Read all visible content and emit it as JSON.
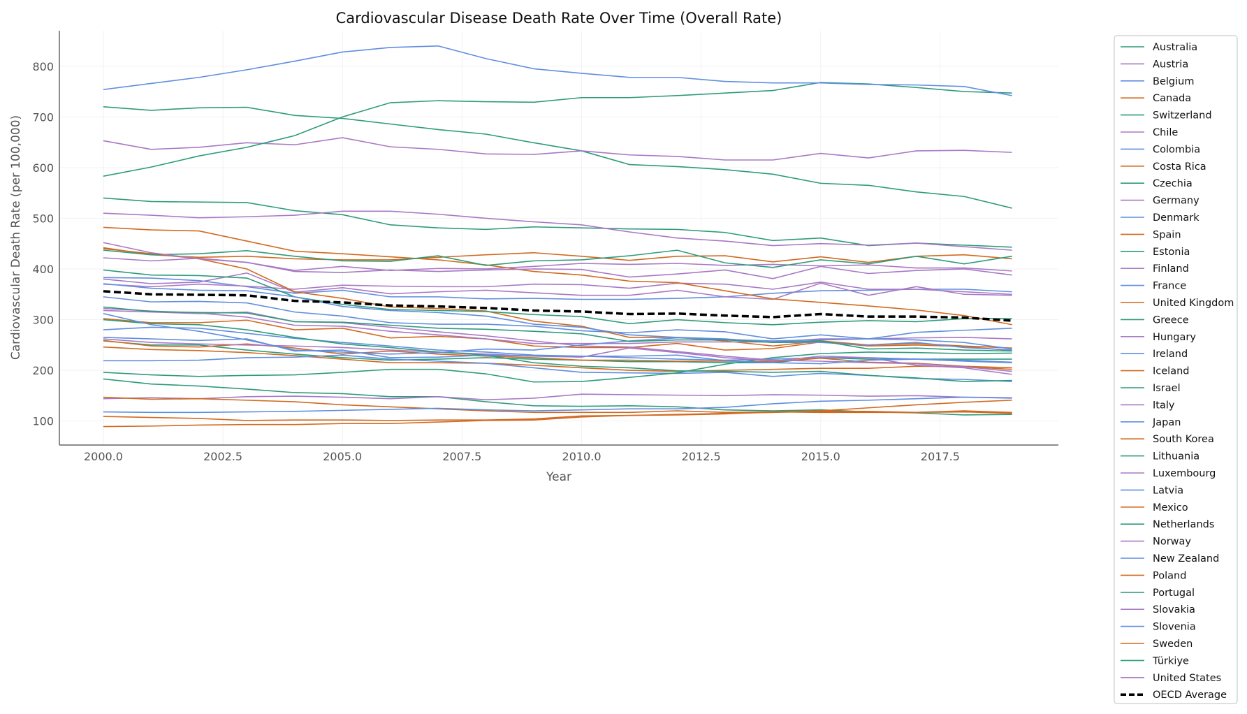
{
  "chart_data": {
    "type": "line",
    "title": "Cardiovascular Disease Death Rate Over Time (Overall Rate)",
    "xlabel": "Year",
    "ylabel": "Cardiovascular Death Rate (per 100,000)",
    "xlim": [
      1999.08,
      2019.97
    ],
    "ylim": [
      52.6,
      870
    ],
    "x_ticks": [
      2000,
      2002.5,
      2005,
      2007.5,
      2010,
      2012.5,
      2015,
      2017.5
    ],
    "x_tick_labels": [
      "2000.0",
      "2002.5",
      "2005.0",
      "2007.5",
      "2010.0",
      "2012.5",
      "2015.0",
      "2017.5"
    ],
    "y_ticks": [
      100,
      200,
      300,
      400,
      500,
      600,
      700,
      800
    ],
    "y_tick_labels": [
      "100",
      "200",
      "300",
      "400",
      "500",
      "600",
      "700",
      "800"
    ],
    "grid": true,
    "legend": "right, outside",
    "colors": {
      "green": "#2e9b7b",
      "purple": "#a878c4",
      "blue": "#5f8ee0",
      "orange": "#d2691f",
      "average": "#000000"
    },
    "x": [
      2000,
      2001,
      2002,
      2003,
      2004,
      2005,
      2006,
      2007,
      2008,
      2009,
      2010,
      2011,
      2012,
      2013,
      2014,
      2015,
      2016,
      2017,
      2018,
      2019
    ],
    "series": [
      {
        "name": "Australia",
        "color": "green",
        "values": [
          258,
          250,
          250,
          240,
          232,
          225,
          220,
          222,
          225,
          222,
          220,
          217,
          217,
          215,
          215,
          225,
          222,
          222,
          222,
          222
        ]
      },
      {
        "name": "Austria",
        "color": "purple",
        "values": [
          422,
          416,
          421,
          413,
          397,
          405,
          397,
          401,
          400,
          405,
          411,
          409,
          411,
          407,
          409,
          406,
          408,
          402,
          402,
          396
        ]
      },
      {
        "name": "Belgium",
        "color": "blue",
        "values": [
          383,
          382,
          377,
          365,
          352,
          358,
          345,
          345,
          341,
          342,
          340,
          340,
          342,
          345,
          352,
          357,
          358,
          360,
          360,
          355
        ]
      },
      {
        "name": "Canada",
        "color": "orange",
        "values": [
          302,
          294,
          294,
          299,
          280,
          283,
          264,
          267,
          262,
          248,
          245,
          245,
          253,
          240,
          243,
          256,
          248,
          250,
          247,
          239
        ]
      },
      {
        "name": "Switzerland",
        "color": "green",
        "values": [
          183,
          173,
          169,
          163,
          156,
          154,
          148,
          148,
          138,
          130,
          129,
          130,
          128,
          122,
          120,
          122,
          118,
          116,
          112,
          113
        ]
      },
      {
        "name": "Chile",
        "color": "purple",
        "values": [
          144,
          146,
          144,
          148,
          149,
          147,
          144,
          148,
          142,
          145,
          153,
          152,
          151,
          150,
          152,
          151,
          149,
          150,
          147,
          146
        ]
      },
      {
        "name": "Colombia",
        "color": "blue",
        "values": [
          280,
          285,
          283,
          273,
          263,
          255,
          248,
          240,
          236,
          230,
          228,
          225,
          222,
          220,
          222,
          225,
          225,
          222,
          218,
          215
        ]
      },
      {
        "name": "Costa Rica",
        "color": "orange",
        "values": [
          246,
          241,
          239,
          235,
          229,
          222,
          215,
          215,
          214,
          210,
          205,
          200,
          198,
          200,
          202,
          204,
          204,
          208,
          207,
          202
        ]
      },
      {
        "name": "Czechia",
        "color": "green",
        "values": [
          540,
          533,
          532,
          531,
          515,
          507,
          487,
          481,
          478,
          483,
          481,
          479,
          478,
          472,
          456,
          461,
          446,
          451,
          447,
          443
        ]
      },
      {
        "name": "Germany",
        "color": "purple",
        "values": [
          370,
          365,
          370,
          366,
          360,
          368,
          366,
          365,
          365,
          370,
          369,
          362,
          372,
          370,
          360,
          374,
          360,
          360,
          355,
          350
        ]
      },
      {
        "name": "Denmark",
        "color": "blue",
        "values": [
          345,
          335,
          336,
          333,
          315,
          307,
          294,
          291,
          291,
          287,
          278,
          274,
          280,
          276,
          262,
          270,
          262,
          275,
          279,
          283
        ]
      },
      {
        "name": "Spain",
        "color": "orange",
        "values": [
          259,
          248,
          246,
          252,
          244,
          232,
          238,
          232,
          228,
          225,
          220,
          220,
          218,
          218,
          217,
          224,
          216,
          214,
          208,
          205
        ]
      },
      {
        "name": "Estonia",
        "color": "green",
        "values": [
          720,
          713,
          718,
          719,
          703,
          697,
          686,
          675,
          666,
          649,
          633,
          606,
          602,
          596,
          587,
          569,
          565,
          552,
          543,
          520
        ]
      },
      {
        "name": "Finland",
        "color": "purple",
        "values": [
          380,
          371,
          374,
          392,
          354,
          363,
          351,
          355,
          358,
          353,
          348,
          348,
          358,
          345,
          340,
          372,
          348,
          365,
          350,
          348
        ]
      },
      {
        "name": "France",
        "color": "blue",
        "values": [
          219,
          219,
          220,
          225,
          226,
          230,
          222,
          218,
          214,
          205,
          196,
          195,
          194,
          196,
          188,
          194,
          190,
          184,
          182,
          178
        ]
      },
      {
        "name": "United Kingdom",
        "color": "orange",
        "values": [
          440,
          430,
          420,
          400,
          355,
          342,
          325,
          322,
          317,
          297,
          287,
          265,
          265,
          258,
          248,
          258,
          250,
          253,
          248,
          244
        ]
      },
      {
        "name": "Greece",
        "color": "green",
        "values": [
          398,
          388,
          387,
          382,
          345,
          330,
          320,
          318,
          316,
          310,
          306,
          292,
          300,
          294,
          290,
          295,
          298,
          296,
          302,
          302
        ]
      },
      {
        "name": "Hungary",
        "color": "purple",
        "values": [
          653,
          636,
          640,
          649,
          645,
          659,
          641,
          636,
          627,
          626,
          633,
          625,
          622,
          615,
          615,
          628,
          619,
          633,
          634,
          630
        ]
      },
      {
        "name": "Ireland",
        "color": "blue",
        "values": [
          371,
          362,
          358,
          357,
          345,
          326,
          318,
          314,
          307,
          291,
          285,
          270,
          265,
          262,
          255,
          255,
          250,
          255,
          245,
          240
        ]
      },
      {
        "name": "Iceland",
        "color": "orange",
        "values": [
          147,
          143,
          144,
          141,
          138,
          132,
          128,
          124,
          120,
          117,
          117,
          117,
          120,
          117,
          118,
          117,
          117,
          117,
          120,
          117
        ]
      },
      {
        "name": "Israel",
        "color": "green",
        "values": [
          196,
          191,
          188,
          190,
          191,
          196,
          202,
          202,
          193,
          177,
          178,
          186,
          195,
          212,
          225,
          233,
          236,
          235,
          233,
          234
        ]
      },
      {
        "name": "Italy",
        "color": "purple",
        "values": [
          318,
          315,
          312,
          315,
          296,
          294,
          285,
          276,
          268,
          258,
          248,
          246,
          237,
          228,
          220,
          218,
          215,
          213,
          207,
          198
        ]
      },
      {
        "name": "Japan",
        "color": "blue",
        "values": [
          118,
          117,
          117,
          118,
          119,
          121,
          123,
          125,
          122,
          120,
          122,
          124,
          124,
          127,
          134,
          139,
          141,
          144,
          147,
          145
        ]
      },
      {
        "name": "South Korea",
        "color": "orange",
        "values": [
          89,
          90,
          92,
          93,
          93,
          95,
          95,
          98,
          101,
          102,
          108,
          111,
          113,
          115,
          117,
          119,
          119,
          117,
          118,
          115
        ]
      },
      {
        "name": "Lithuania",
        "color": "green",
        "values": [
          583,
          601,
          623,
          640,
          663,
          700,
          728,
          732,
          730,
          729,
          738,
          738,
          742,
          747,
          752,
          768,
          765,
          758,
          750,
          747
        ]
      },
      {
        "name": "Luxembourg",
        "color": "purple",
        "values": [
          262,
          255,
          252,
          250,
          248,
          245,
          240,
          236,
          232,
          228,
          226,
          244,
          235,
          225,
          218,
          228,
          225,
          210,
          205,
          192
        ]
      },
      {
        "name": "Latvia",
        "color": "blue",
        "values": [
          754,
          766,
          778,
          793,
          810,
          828,
          837,
          840,
          815,
          795,
          786,
          778,
          778,
          770,
          767,
          767,
          764,
          763,
          760,
          742
        ]
      },
      {
        "name": "Mexico",
        "color": "orange",
        "values": [
          109,
          107,
          105,
          101,
          102,
          102,
          101,
          102,
          102,
          104,
          110,
          111,
          112,
          114,
          118,
          120,
          126,
          132,
          137,
          141
        ]
      },
      {
        "name": "Netherlands",
        "color": "green",
        "values": [
          300,
          292,
          290,
          280,
          265,
          252,
          245,
          236,
          230,
          215,
          208,
          205,
          199,
          198,
          196,
          198,
          190,
          185,
          178,
          180
        ]
      },
      {
        "name": "Norway",
        "color": "purple",
        "values": [
          322,
          317,
          313,
          305,
          289,
          287,
          277,
          270,
          262,
          253,
          253,
          253,
          256,
          256,
          256,
          262,
          262,
          264,
          265,
          262
        ]
      },
      {
        "name": "New Zealand",
        "color": "blue",
        "values": [
          312,
          290,
          277,
          260,
          240,
          236,
          232,
          235,
          242,
          240,
          250,
          258,
          264,
          261,
          258,
          260,
          262,
          260,
          255,
          242
        ]
      },
      {
        "name": "Poland",
        "color": "orange",
        "values": [
          482,
          477,
          475,
          455,
          435,
          430,
          424,
          418,
          408,
          395,
          388,
          376,
          373,
          357,
          341,
          334,
          327,
          319,
          308,
          290
        ]
      },
      {
        "name": "Portugal",
        "color": "green",
        "values": [
          325,
          316,
          314,
          313,
          296,
          295,
          289,
          283,
          281,
          277,
          272,
          257,
          260,
          260,
          255,
          258,
          242,
          244,
          240,
          238
        ]
      },
      {
        "name": "Slovakia",
        "color": "purple",
        "values": [
          510,
          506,
          501,
          503,
          506,
          514,
          514,
          508,
          500,
          493,
          487,
          473,
          461,
          455,
          446,
          450,
          447,
          451,
          444,
          437
        ]
      },
      {
        "name": "Slovenia",
        "color": "blue",
        "values": [
          265,
          262,
          259,
          262,
          238,
          240,
          225,
          226,
          230,
          228,
          228,
          228,
          230,
          219,
          215,
          213,
          220,
          222,
          220,
          216
        ]
      },
      {
        "name": "Sweden",
        "color": "orange",
        "values": [
          442,
          428,
          423,
          425,
          420,
          418,
          418,
          423,
          428,
          432,
          425,
          417,
          425,
          426,
          414,
          424,
          413,
          425,
          428,
          420
        ]
      },
      {
        "name": "Türkiye",
        "color": "green",
        "values": [
          437,
          428,
          430,
          436,
          425,
          416,
          415,
          426,
          407,
          416,
          418,
          426,
          437,
          412,
          403,
          418,
          410,
          425,
          410,
          425
        ]
      },
      {
        "name": "United States",
        "color": "purple",
        "values": [
          452,
          432,
          420,
          413,
          395,
          393,
          398,
          395,
          398,
          400,
          399,
          384,
          390,
          398,
          381,
          405,
          391,
          397,
          400,
          388
        ]
      },
      {
        "name": "OECD Average",
        "color": "average",
        "dashed": true,
        "values": [
          356,
          350,
          349,
          348,
          337,
          334,
          328,
          326,
          323,
          318,
          316,
          311,
          312,
          308,
          305,
          311,
          306,
          306,
          304,
          298
        ]
      }
    ]
  }
}
